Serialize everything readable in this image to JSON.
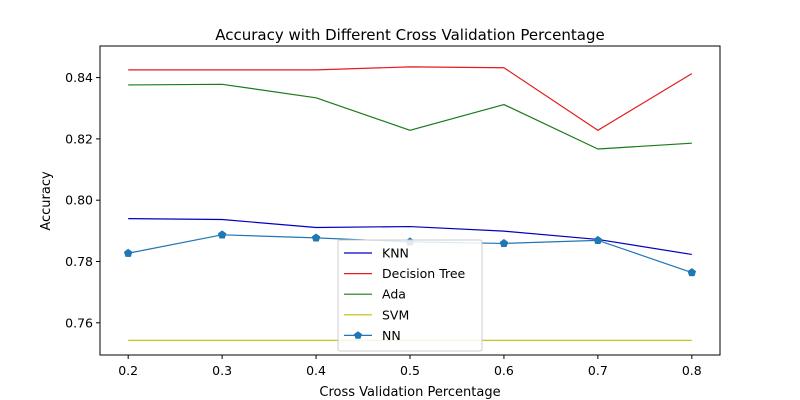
{
  "chart_data": {
    "type": "line",
    "title": "Accuracy with Different Cross Validation Percentage",
    "xlabel": "Cross Validation Percentage",
    "ylabel": "Accuracy",
    "x": [
      0.2,
      0.3,
      0.4,
      0.5,
      0.6,
      0.7,
      0.8
    ],
    "xticks": [
      "0.2",
      "0.3",
      "0.4",
      "0.5",
      "0.6",
      "0.7",
      "0.8"
    ],
    "yticks": [
      "0.76",
      "0.78",
      "0.80",
      "0.82",
      "0.84"
    ],
    "xlim": [
      0.17,
      0.83
    ],
    "ylim": [
      0.7495,
      0.8503
    ],
    "grid": false,
    "legend_position": "lower-center",
    "series": [
      {
        "name": "KNN",
        "color": "#0000bf",
        "marker": "none",
        "values": [
          0.794,
          0.7937,
          0.7911,
          0.7914,
          0.7899,
          0.7872,
          0.7823
        ]
      },
      {
        "name": "Decision Tree",
        "color": "#e41a1c",
        "marker": "none",
        "values": [
          0.8425,
          0.8425,
          0.8425,
          0.8435,
          0.8432,
          0.8228,
          0.8413
        ]
      },
      {
        "name": "Ada",
        "color": "#1a7a1a",
        "marker": "none",
        "values": [
          0.8376,
          0.8378,
          0.8334,
          0.8228,
          0.8312,
          0.8167,
          0.8186
        ]
      },
      {
        "name": "SVM",
        "color": "#bfbf00",
        "marker": "none",
        "values": [
          0.7543,
          0.7543,
          0.7543,
          0.7543,
          0.7543,
          0.7543,
          0.7543
        ]
      },
      {
        "name": "NN",
        "color": "#1f77b4",
        "marker": "pentagon",
        "values": [
          0.7827,
          0.7887,
          0.7877,
          0.7864,
          0.7859,
          0.7869,
          0.7764
        ]
      }
    ]
  }
}
